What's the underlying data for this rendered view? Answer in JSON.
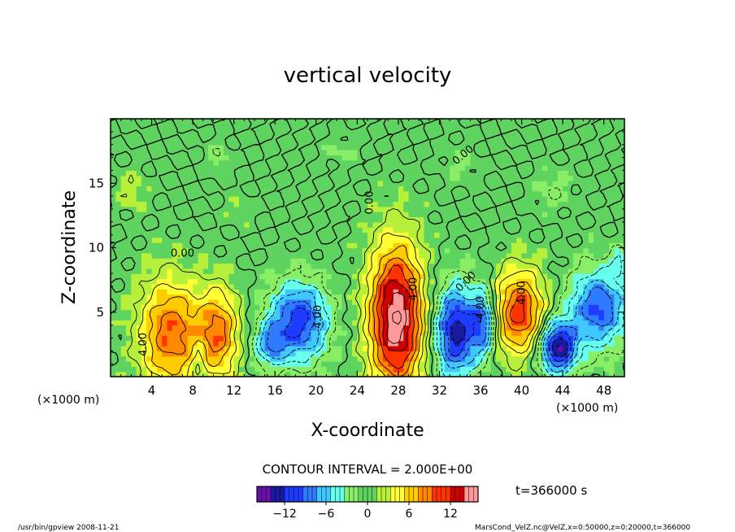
{
  "chart_data": {
    "type": "heatmap",
    "title": "vertical velocity",
    "xlabel": "X-coordinate",
    "ylabel": "Z-coordinate",
    "x_unit_left": "(×1000 m)",
    "x_unit_right": "(×1000 m)",
    "xlim": [
      0,
      50
    ],
    "ylim": [
      0,
      20
    ],
    "x_ticks": [
      4,
      8,
      12,
      16,
      20,
      24,
      28,
      32,
      36,
      40,
      44,
      48
    ],
    "y_ticks": [
      5,
      10,
      15
    ],
    "contour_interval_text": "CONTOUR INTERVAL = 2.000E+00",
    "time_text": "t=366000 s",
    "colorbar": {
      "range": [
        -16,
        16
      ],
      "ticks": [
        -12,
        -6,
        0,
        6,
        12
      ],
      "tick_labels": [
        "−12",
        "−6",
        "0",
        "6",
        "12"
      ],
      "colors": [
        "#6a0dad",
        "#1a1aa0",
        "#1e3cff",
        "#2f7bff",
        "#3fc8ff",
        "#66ffee",
        "#88ee66",
        "#5fd35f",
        "#b6f03a",
        "#ffff33",
        "#ffcc00",
        "#ff8800",
        "#ff3300",
        "#cc0000",
        "#ff9999"
      ]
    },
    "contour_labels": [
      {
        "text": "4.00",
        "x": 3.5,
        "z": 2.5,
        "rotate": -90
      },
      {
        "text": "-4.00",
        "x": 20.5,
        "z": 4.5,
        "rotate": -90
      },
      {
        "text": "4.00",
        "x": 29.8,
        "z": 6.8,
        "rotate": -90
      },
      {
        "text": "-4.00",
        "x": 36.3,
        "z": 5.2,
        "rotate": -90
      },
      {
        "text": "4.00",
        "x": 40.3,
        "z": 6.5,
        "rotate": -90
      },
      {
        "text": "0.00",
        "x": 7.0,
        "z": 9.3,
        "rotate": 0
      },
      {
        "text": "0.00",
        "x": 34.8,
        "z": 7.2,
        "rotate": -45
      },
      {
        "text": "0.00",
        "x": 25.5,
        "z": 13.5,
        "rotate": -90
      },
      {
        "text": "0.00",
        "x": 34.5,
        "z": 17.0,
        "rotate": -40
      }
    ],
    "features": [
      {
        "x": 5.8,
        "z": 3.3,
        "rx": 3.0,
        "rz": 4.2,
        "value": 9.5
      },
      {
        "x": 10.5,
        "z": 3.3,
        "rx": 2.0,
        "rz": 3.5,
        "value": 8.5
      },
      {
        "x": 8.6,
        "z": 1.2,
        "rx": 0.7,
        "rz": 1.6,
        "value": -3
      },
      {
        "x": 18.3,
        "z": 4.3,
        "rx": 2.8,
        "rz": 3.0,
        "value": -11
      },
      {
        "x": 15.5,
        "z": 2.5,
        "rx": 1.5,
        "rz": 1.8,
        "value": -6
      },
      {
        "x": 27.8,
        "z": 4.6,
        "rx": 2.6,
        "rz": 5.5,
        "value": 16
      },
      {
        "x": 33.6,
        "z": 3.5,
        "rx": 2.0,
        "rz": 3.5,
        "value": -13
      },
      {
        "x": 36.3,
        "z": 4.2,
        "rx": 1.2,
        "rz": 2.5,
        "value": -9
      },
      {
        "x": 39.8,
        "z": 5.0,
        "rx": 2.4,
        "rz": 3.2,
        "value": 11
      },
      {
        "x": 43.5,
        "z": 2.3,
        "rx": 1.8,
        "rz": 2.0,
        "value": -14
      },
      {
        "x": 47.5,
        "z": 5.3,
        "rx": 2.8,
        "rz": 3.0,
        "value": -10
      },
      {
        "x": 49.5,
        "z": 9.0,
        "rx": 0.8,
        "rz": 1.0,
        "value": -4
      },
      {
        "x": 2.0,
        "z": 14.5,
        "rx": 1.5,
        "rz": 1.5,
        "value": 2
      },
      {
        "x": 10.5,
        "z": 17.0,
        "rx": 1.0,
        "rz": 1.2,
        "value": -2
      },
      {
        "x": 22.5,
        "z": 17.5,
        "rx": 1.5,
        "rz": 1.0,
        "value": -1.5
      },
      {
        "x": 34.0,
        "z": 16.5,
        "rx": 1.5,
        "rz": 1.5,
        "value": -1.5
      },
      {
        "x": 43.0,
        "z": 14.5,
        "rx": 1.8,
        "rz": 1.5,
        "value": -2
      },
      {
        "x": 12.5,
        "z": 13.0,
        "rx": 1.2,
        "rz": 1.0,
        "value": 1.5
      }
    ]
  },
  "footer": {
    "left_text": "/usr/bin/gpview   2008-11-21",
    "right_text": "MarsCond_VelZ.nc@VelZ,x=0:50000,z=0:20000,t=366000"
  }
}
